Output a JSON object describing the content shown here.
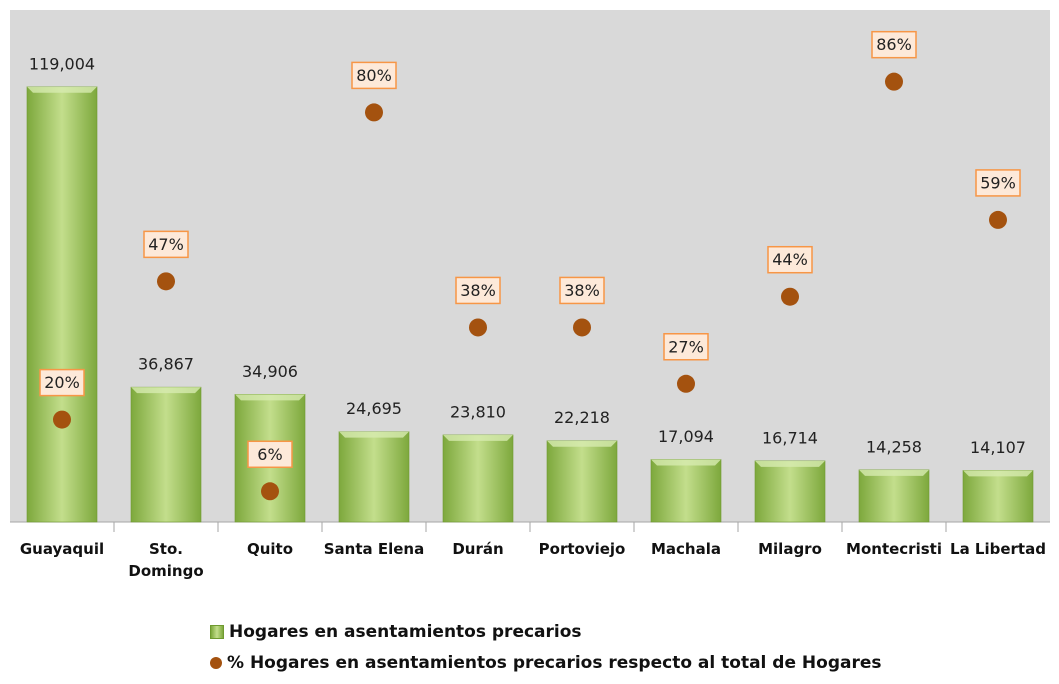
{
  "chart_data": {
    "type": "bar",
    "categories": [
      "Guayaquil",
      "Sto.\nDomingo",
      "Quito",
      "Santa Elena",
      "Durán",
      "Portoviejo",
      "Machala",
      "Milagro",
      "Montecristi",
      "La Libertad"
    ],
    "series": [
      {
        "name": "Hogares en asentamientos precarios",
        "color": "#8dbb4a",
        "type": "bar",
        "values": [
          119004,
          36867,
          34906,
          24695,
          23810,
          22218,
          17094,
          16714,
          14258,
          14107
        ],
        "value_labels": [
          "119,004",
          "36,867",
          "34,906",
          "24,695",
          "23,810",
          "22,218",
          "17,094",
          "16,714",
          "14,258",
          "14,107"
        ]
      },
      {
        "name": "% Hogares en asentamientos precarios respecto al total de Hogares",
        "color": "#a4520f",
        "type": "scatter",
        "axis": "y2",
        "values": [
          20,
          47,
          6,
          80,
          38,
          38,
          27,
          44,
          86,
          59
        ],
        "value_labels": [
          "20%",
          "47%",
          "6%",
          "80%",
          "38%",
          "38%",
          "27%",
          "44%",
          "86%",
          "59%"
        ]
      }
    ],
    "ylim": [
      0,
      140000
    ],
    "y2lim": [
      0,
      100
    ]
  }
}
